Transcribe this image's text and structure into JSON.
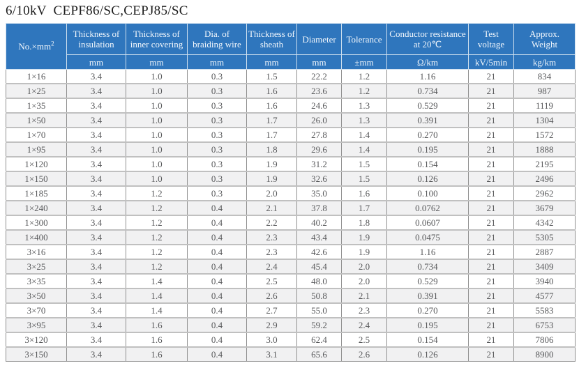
{
  "page": {
    "title": "6/10kV  CEPF86/SC,CEPJ85/SC"
  },
  "colors": {
    "header_bg": "#2f76bd",
    "header_text": "#f2f7fc",
    "row_alt_bg": "#f1f1f2",
    "body_text": "#58595b",
    "grid_line": "#8f8f8f"
  },
  "table": {
    "columns": [
      {
        "label": "No.×mm",
        "sup": "2",
        "unit": ""
      },
      {
        "label": "Thickness of insulation",
        "unit": "mm"
      },
      {
        "label": "Thickness of inner covering",
        "unit": "mm"
      },
      {
        "label": "Dia. of braiding wire",
        "unit": "mm"
      },
      {
        "label": "Thickness of sheath",
        "unit": "mm"
      },
      {
        "label": "Diameter",
        "unit": "mm"
      },
      {
        "label": "Tolerance",
        "unit": "±mm"
      },
      {
        "label": "Conductor resistance at 20℃",
        "unit": "Ω/km"
      },
      {
        "label": "Test voltage",
        "unit": "kV/5min"
      },
      {
        "label": "Approx. Weight",
        "unit": "kg/km"
      }
    ],
    "rows": [
      [
        "1×16",
        "3.4",
        "1.0",
        "0.3",
        "1.5",
        "22.2",
        "1.2",
        "1.16",
        "21",
        "834"
      ],
      [
        "1×25",
        "3.4",
        "1.0",
        "0.3",
        "1.6",
        "23.6",
        "1.2",
        "0.734",
        "21",
        "987"
      ],
      [
        "1×35",
        "3.4",
        "1.0",
        "0.3",
        "1.6",
        "24.6",
        "1.3",
        "0.529",
        "21",
        "1119"
      ],
      [
        "1×50",
        "3.4",
        "1.0",
        "0.3",
        "1.7",
        "26.0",
        "1.3",
        "0.391",
        "21",
        "1304"
      ],
      [
        "1×70",
        "3.4",
        "1.0",
        "0.3",
        "1.7",
        "27.8",
        "1.4",
        "0.270",
        "21",
        "1572"
      ],
      [
        "1×95",
        "3.4",
        "1.0",
        "0.3",
        "1.8",
        "29.6",
        "1.4",
        "0.195",
        "21",
        "1888"
      ],
      [
        "1×120",
        "3.4",
        "1.0",
        "0.3",
        "1.9",
        "31.2",
        "1.5",
        "0.154",
        "21",
        "2195"
      ],
      [
        "1×150",
        "3.4",
        "1.0",
        "0.3",
        "1.9",
        "32.6",
        "1.5",
        "0.126",
        "21",
        "2496"
      ],
      [
        "1×185",
        "3.4",
        "1.2",
        "0.3",
        "2.0",
        "35.0",
        "1.6",
        "0.100",
        "21",
        "2962"
      ],
      [
        "1×240",
        "3.4",
        "1.2",
        "0.4",
        "2.1",
        "37.8",
        "1.7",
        "0.0762",
        "21",
        "3679"
      ],
      [
        "1×300",
        "3.4",
        "1.2",
        "0.4",
        "2.2",
        "40.2",
        "1.8",
        "0.0607",
        "21",
        "4342"
      ],
      [
        "1×400",
        "3.4",
        "1.2",
        "0.4",
        "2.3",
        "43.4",
        "1.9",
        "0.0475",
        "21",
        "5305"
      ],
      [
        "3×16",
        "3.4",
        "1.2",
        "0.4",
        "2.3",
        "42.6",
        "1.9",
        "1.16",
        "21",
        "2887"
      ],
      [
        "3×25",
        "3.4",
        "1.2",
        "0.4",
        "2.4",
        "45.4",
        "2.0",
        "0.734",
        "21",
        "3409"
      ],
      [
        "3×35",
        "3.4",
        "1.4",
        "0.4",
        "2.5",
        "48.0",
        "2.0",
        "0.529",
        "21",
        "3940"
      ],
      [
        "3×50",
        "3.4",
        "1.4",
        "0.4",
        "2.6",
        "50.8",
        "2.1",
        "0.391",
        "21",
        "4577"
      ],
      [
        "3×70",
        "3.4",
        "1.4",
        "0.4",
        "2.7",
        "55.0",
        "2.3",
        "0.270",
        "21",
        "5583"
      ],
      [
        "3×95",
        "3.4",
        "1.6",
        "0.4",
        "2.9",
        "59.2",
        "2.4",
        "0.195",
        "21",
        "6753"
      ],
      [
        "3×120",
        "3.4",
        "1.6",
        "0.4",
        "3.0",
        "62.4",
        "2.5",
        "0.154",
        "21",
        "7806"
      ],
      [
        "3×150",
        "3.4",
        "1.6",
        "0.4",
        "3.1",
        "65.6",
        "2.6",
        "0.126",
        "21",
        "8900"
      ]
    ]
  }
}
